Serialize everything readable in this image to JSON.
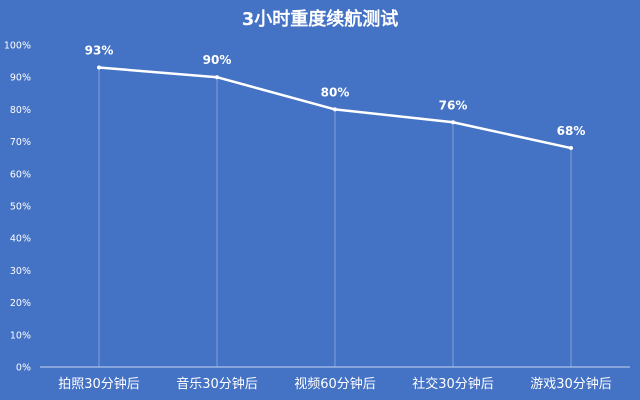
{
  "chart_data": {
    "type": "line",
    "title": "3小时重度续航测试",
    "categories": [
      "拍照30分钟后",
      "音乐30分钟后",
      "视频60分钟后",
      "社交30分钟后",
      "游戏30分钟后"
    ],
    "values": [
      93,
      90,
      80,
      76,
      68
    ],
    "data_labels": [
      "93%",
      "90%",
      "80%",
      "76%",
      "68%"
    ],
    "ylim": [
      0,
      100
    ],
    "yticks": [
      "0%",
      "10%",
      "20%",
      "30%",
      "40%",
      "50%",
      "60%",
      "70%",
      "80%",
      "90%",
      "100%"
    ],
    "xlabel": "",
    "ylabel": "",
    "grid": "vertical lines at categories",
    "legend": "none",
    "colors": {
      "background": "#4472c4",
      "line": "#ffffff",
      "text": "#ffffff"
    }
  }
}
